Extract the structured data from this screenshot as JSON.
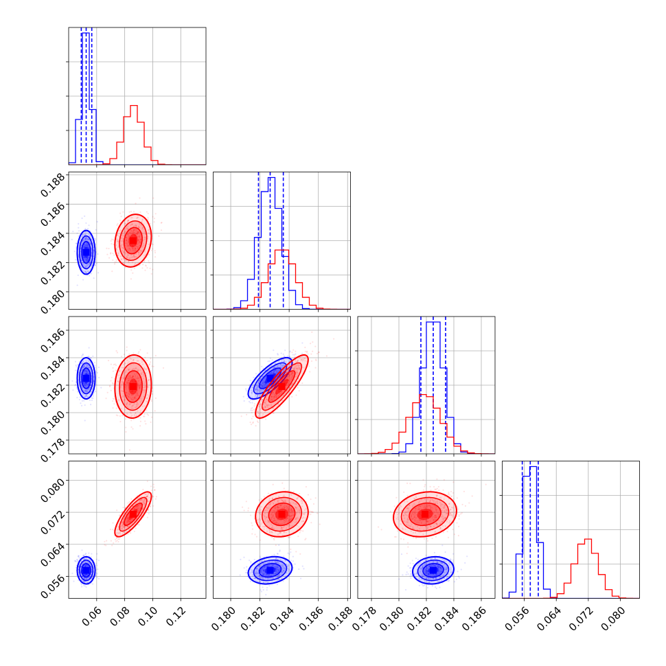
{
  "chart_data": {
    "type": "corner",
    "grid": true,
    "parameters": [
      {
        "range": [
          0.04,
          0.138
        ],
        "ticks": [
          0.06,
          0.08,
          0.1,
          0.12
        ],
        "tick_labels": [
          "0.06",
          "0.08",
          "0.10",
          "0.12"
        ]
      },
      {
        "range": [
          0.1788,
          0.1882
        ],
        "ticks": [
          0.18,
          0.182,
          0.184,
          0.186,
          0.188
        ],
        "tick_labels": [
          "0.180",
          "0.182",
          "0.184",
          "0.186",
          "0.188"
        ]
      },
      {
        "range": [
          0.177,
          0.187
        ],
        "ticks": [
          0.178,
          0.18,
          0.182,
          0.184,
          0.186
        ],
        "tick_labels": [
          "0.178",
          "0.180",
          "0.182",
          "0.184",
          "0.186"
        ]
      },
      {
        "range": [
          0.0505,
          0.0848
        ],
        "ticks": [
          0.056,
          0.064,
          0.072,
          0.08
        ],
        "tick_labels": [
          "0.056",
          "0.064",
          "0.072",
          "0.080"
        ]
      }
    ],
    "series": [
      {
        "color": "#0000ff",
        "mean": [
          0.0525,
          0.1827,
          0.1825,
          0.0575
        ],
        "std": [
          0.0032,
          0.00075,
          0.00075,
          0.0017
        ],
        "corr": [
          [
            1,
            0,
            0,
            0
          ],
          [
            0,
            1,
            0.75,
            0.2
          ],
          [
            0,
            0.75,
            1,
            0.1
          ],
          [
            0,
            0.2,
            0.1,
            1
          ]
        ],
        "quantiles": [
          [
            0.049,
            0.0525,
            0.0565
          ],
          [
            0.1819,
            0.1827,
            0.1836
          ],
          [
            0.1816,
            0.1825,
            0.1834
          ],
          [
            0.0555,
            0.0575,
            0.0595
          ]
        ],
        "hist_peak": 1.0
      },
      {
        "color": "#ff0000",
        "mean": [
          0.086,
          0.1835,
          0.1819,
          0.0715
        ],
        "std": [
          0.0065,
          0.0009,
          0.00115,
          0.0028
        ],
        "corr": [
          [
            1,
            0.15,
            0.05,
            0.8
          ],
          [
            0.15,
            1,
            0.85,
            0.1
          ],
          [
            0.05,
            0.85,
            1,
            0.15
          ],
          [
            0.8,
            0.1,
            0.15,
            1
          ]
        ],
        "hist_peak": 0.45
      }
    ]
  }
}
